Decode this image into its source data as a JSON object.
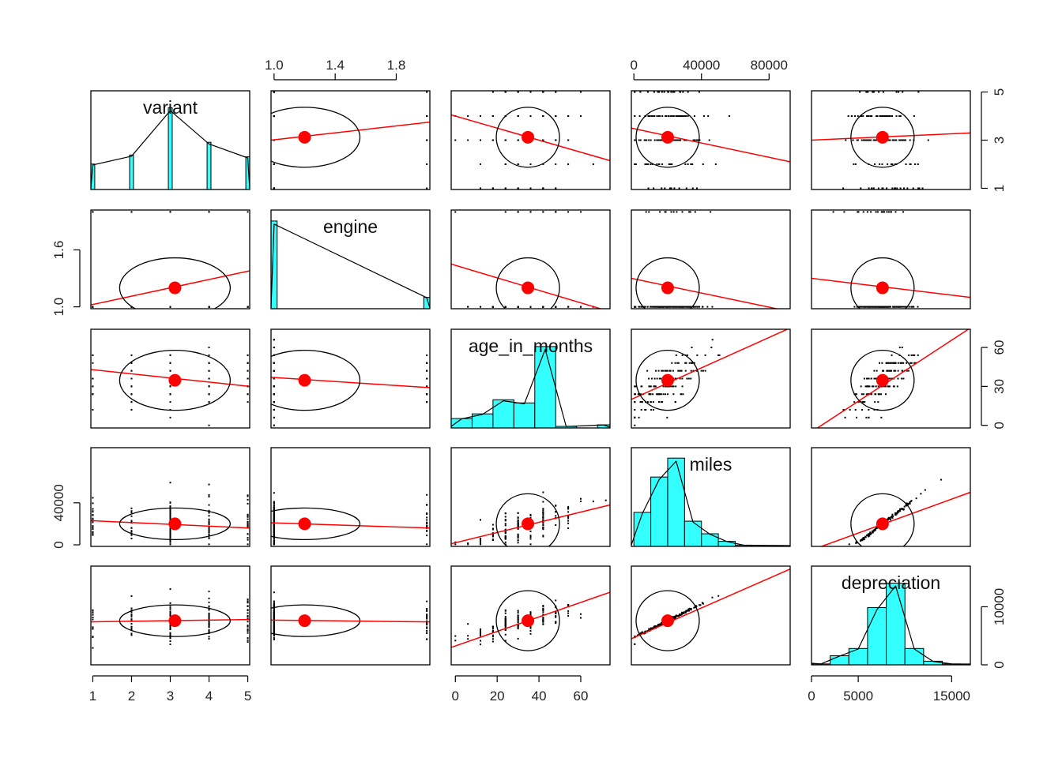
{
  "chart_data": {
    "type": "scatter",
    "variables": [
      "variant",
      "engine",
      "age_in_months",
      "miles",
      "depreciation"
    ],
    "ranges": {
      "variant": [
        0.95,
        5.05
      ],
      "engine": [
        0.98,
        2.02
      ],
      "age_in_months": [
        -2,
        74
      ],
      "miles": [
        -1500,
        92500
      ],
      "depreciation": [
        0,
        17000
      ]
    },
    "ticks": {
      "variant": [
        "1",
        "2",
        "3",
        "4",
        "5"
      ],
      "engine": [
        "1.0",
        "1.4",
        "1.8"
      ],
      "engine_left": [
        "1.0",
        "1.6"
      ],
      "age_in_months": [
        "0",
        "20",
        "40",
        "60"
      ],
      "age_in_months_right": [
        "0",
        "30",
        "60"
      ],
      "miles": [
        "0",
        "40000",
        "80000"
      ],
      "depreciation": [
        "0",
        "5000",
        "15000"
      ],
      "depreciation_right": [
        "0",
        "10000"
      ]
    },
    "means": {
      "variant": 3.12,
      "engine": 1.2,
      "age_in_months": 34.7,
      "miles": 20000,
      "depreciation": 7600
    },
    "regression_lines": [
      {
        "x": "engine",
        "y": "variant",
        "at_xmin": 3.0,
        "at_xmax": 3.75
      },
      {
        "x": "age_in_months",
        "y": "variant",
        "at_xmin": 4.05,
        "at_xmax": 2.15
      },
      {
        "x": "miles",
        "y": "variant",
        "at_xmin": 3.5,
        "at_xmax": 2.1
      },
      {
        "x": "depreciation",
        "y": "variant",
        "at_xmin": 3.0,
        "at_xmax": 3.3
      },
      {
        "x": "variant",
        "y": "engine",
        "at_xmin": 1.02,
        "at_xmax": 1.38
      },
      {
        "x": "age_in_months",
        "y": "engine",
        "at_xmin": 1.45,
        "at_xmax": 0.95
      },
      {
        "x": "miles",
        "y": "engine",
        "at_xmin": 1.3,
        "at_xmax": 0.95
      },
      {
        "x": "depreciation",
        "y": "engine",
        "at_xmin": 1.3,
        "at_xmax": 1.1
      },
      {
        "x": "variant",
        "y": "age_in_months",
        "at_xmin": 43,
        "at_xmax": 30
      },
      {
        "x": "engine",
        "y": "age_in_months",
        "at_xmin": 37,
        "at_xmax": 29
      },
      {
        "x": "miles",
        "y": "age_in_months",
        "at_xmin": 20,
        "at_xmax": 75
      },
      {
        "x": "depreciation",
        "y": "age_in_months",
        "at_xmin": -5,
        "at_xmax": 75
      },
      {
        "x": "variant",
        "y": "miles",
        "at_xmin": 23000,
        "at_xmax": 16000
      },
      {
        "x": "engine",
        "y": "miles",
        "at_xmin": 21000,
        "at_xmax": 16000
      },
      {
        "x": "age_in_months",
        "y": "miles",
        "at_xmin": 1000,
        "at_xmax": 38000
      },
      {
        "x": "depreciation",
        "y": "miles",
        "at_xmin": -5000,
        "at_xmax": 50000
      },
      {
        "x": "variant",
        "y": "depreciation",
        "at_xmin": 7400,
        "at_xmax": 7800
      },
      {
        "x": "engine",
        "y": "depreciation",
        "at_xmin": 7700,
        "at_xmax": 7400
      },
      {
        "x": "age_in_months",
        "y": "depreciation",
        "at_xmin": 3000,
        "at_xmax": 12500
      },
      {
        "x": "miles",
        "y": "depreciation",
        "at_xmin": 4500,
        "at_xmax": 16500
      }
    ],
    "histograms": {
      "variant": {
        "bins": [
          [
            0.95,
            1.05,
            14
          ],
          [
            1.95,
            2.05,
            19
          ],
          [
            2.95,
            3.05,
            45
          ],
          [
            3.95,
            4.05,
            26
          ],
          [
            4.95,
            5.05,
            18
          ]
        ],
        "max": 50
      },
      "engine": {
        "bins": [
          [
            0.98,
            1.02,
            85
          ],
          [
            1.98,
            2.02,
            11
          ],
          [
            1.0,
            1.0,
            0
          ]
        ],
        "max": 88
      },
      "age_in_months": {
        "bins": [
          [
            -2,
            8,
            6
          ],
          [
            8,
            18,
            9
          ],
          [
            18,
            28,
            18
          ],
          [
            28,
            38,
            16
          ],
          [
            38,
            48,
            52
          ],
          [
            48,
            58,
            1
          ],
          [
            58,
            68,
            0
          ],
          [
            68,
            74,
            2
          ]
        ],
        "max": 58
      },
      "miles": {
        "bins": [
          [
            0,
            10000,
            27
          ],
          [
            10000,
            20000,
            55
          ],
          [
            20000,
            30000,
            70
          ],
          [
            30000,
            40000,
            20
          ],
          [
            40000,
            50000,
            10
          ],
          [
            50000,
            60000,
            4
          ],
          [
            60000,
            70000,
            1
          ],
          [
            70000,
            90000,
            0
          ]
        ],
        "max": 72
      },
      "depreciation": {
        "bins": [
          [
            0,
            2000,
            1
          ],
          [
            2000,
            4000,
            10
          ],
          [
            4000,
            6000,
            18
          ],
          [
            6000,
            8000,
            63
          ],
          [
            8000,
            10000,
            90
          ],
          [
            10000,
            12000,
            18
          ],
          [
            12000,
            14000,
            4
          ],
          [
            14000,
            16000,
            1
          ]
        ],
        "max": 100
      }
    },
    "colors": {
      "histogram_fill": "#33ffff",
      "regression": "#ff0000",
      "mean_point": "#ff0000",
      "ellipse": "#000000",
      "points": "#000000"
    }
  }
}
